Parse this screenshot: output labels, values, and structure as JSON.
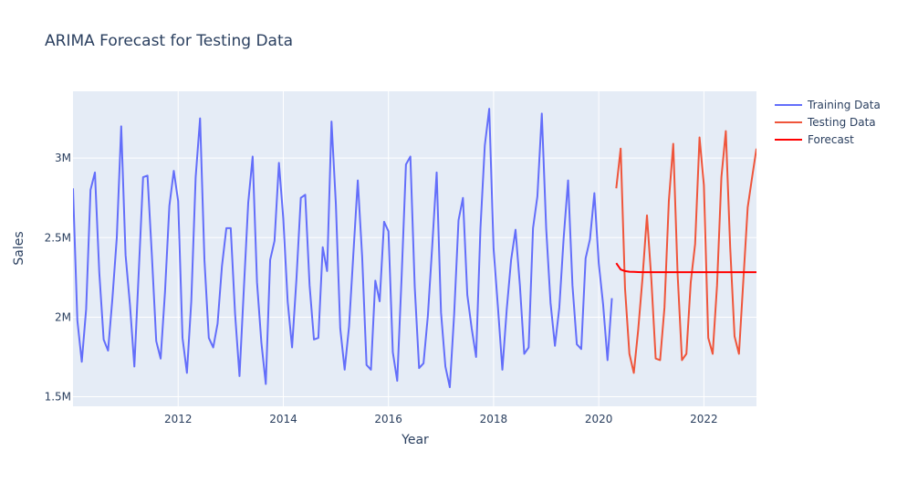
{
  "chart_data": {
    "type": "line",
    "title": "ARIMA Forecast for Testing Data",
    "xlabel": "Year",
    "ylabel": "Sales",
    "xlim": [
      2010.0,
      2023.0
    ],
    "ylim": [
      1440000,
      3420000
    ],
    "x_ticks": [
      2012,
      2014,
      2016,
      2018,
      2020,
      2022
    ],
    "y_ticks": [
      {
        "value": 1500000,
        "label": "1.5M"
      },
      {
        "value": 2000000,
        "label": "2M"
      },
      {
        "value": 2500000,
        "label": "2.5M"
      },
      {
        "value": 3000000,
        "label": "3M"
      }
    ],
    "grid": true,
    "legend_position": "right",
    "series": [
      {
        "name": "Training Data",
        "color": "#636efa",
        "values": [
          [
            2010.0,
            2810000
          ],
          [
            2010.083,
            1980000
          ],
          [
            2010.167,
            1720000
          ],
          [
            2010.25,
            2050000
          ],
          [
            2010.333,
            2800000
          ],
          [
            2010.417,
            2910000
          ],
          [
            2010.5,
            2280000
          ],
          [
            2010.583,
            1860000
          ],
          [
            2010.667,
            1790000
          ],
          [
            2010.75,
            2120000
          ],
          [
            2010.833,
            2500000
          ],
          [
            2010.917,
            3200000
          ],
          [
            2011.0,
            2390000
          ],
          [
            2011.083,
            2080000
          ],
          [
            2011.167,
            1690000
          ],
          [
            2011.25,
            2280000
          ],
          [
            2011.333,
            2880000
          ],
          [
            2011.417,
            2890000
          ],
          [
            2011.5,
            2390000
          ],
          [
            2011.583,
            1850000
          ],
          [
            2011.667,
            1740000
          ],
          [
            2011.75,
            2160000
          ],
          [
            2011.833,
            2700000
          ],
          [
            2011.917,
            2920000
          ],
          [
            2012.0,
            2730000
          ],
          [
            2012.083,
            1870000
          ],
          [
            2012.167,
            1650000
          ],
          [
            2012.25,
            2100000
          ],
          [
            2012.333,
            2880000
          ],
          [
            2012.417,
            3250000
          ],
          [
            2012.5,
            2360000
          ],
          [
            2012.583,
            1870000
          ],
          [
            2012.667,
            1810000
          ],
          [
            2012.75,
            1960000
          ],
          [
            2012.833,
            2320000
          ],
          [
            2012.917,
            2560000
          ],
          [
            2013.0,
            2560000
          ],
          [
            2013.083,
            2020000
          ],
          [
            2013.167,
            1630000
          ],
          [
            2013.25,
            2180000
          ],
          [
            2013.333,
            2720000
          ],
          [
            2013.417,
            3010000
          ],
          [
            2013.5,
            2220000
          ],
          [
            2013.583,
            1840000
          ],
          [
            2013.667,
            1580000
          ],
          [
            2013.75,
            2360000
          ],
          [
            2013.833,
            2480000
          ],
          [
            2013.917,
            2970000
          ],
          [
            2014.0,
            2620000
          ],
          [
            2014.083,
            2100000
          ],
          [
            2014.167,
            1810000
          ],
          [
            2014.25,
            2240000
          ],
          [
            2014.333,
            2750000
          ],
          [
            2014.417,
            2770000
          ],
          [
            2014.5,
            2200000
          ],
          [
            2014.583,
            1860000
          ],
          [
            2014.667,
            1870000
          ],
          [
            2014.75,
            2440000
          ],
          [
            2014.833,
            2290000
          ],
          [
            2014.917,
            3230000
          ],
          [
            2015.0,
            2710000
          ],
          [
            2015.083,
            1930000
          ],
          [
            2015.167,
            1670000
          ],
          [
            2015.25,
            1940000
          ],
          [
            2015.333,
            2400000
          ],
          [
            2015.417,
            2860000
          ],
          [
            2015.5,
            2380000
          ],
          [
            2015.583,
            1700000
          ],
          [
            2015.667,
            1670000
          ],
          [
            2015.75,
            2230000
          ],
          [
            2015.833,
            2100000
          ],
          [
            2015.917,
            2600000
          ],
          [
            2016.0,
            2540000
          ],
          [
            2016.083,
            1780000
          ],
          [
            2016.167,
            1600000
          ],
          [
            2016.25,
            2250000
          ],
          [
            2016.333,
            2960000
          ],
          [
            2016.417,
            3010000
          ],
          [
            2016.5,
            2190000
          ],
          [
            2016.583,
            1680000
          ],
          [
            2016.667,
            1710000
          ],
          [
            2016.75,
            2010000
          ],
          [
            2016.833,
            2450000
          ],
          [
            2016.917,
            2910000
          ],
          [
            2017.0,
            2030000
          ],
          [
            2017.083,
            1690000
          ],
          [
            2017.167,
            1560000
          ],
          [
            2017.25,
            2020000
          ],
          [
            2017.333,
            2610000
          ],
          [
            2017.417,
            2750000
          ],
          [
            2017.5,
            2140000
          ],
          [
            2017.583,
            1930000
          ],
          [
            2017.667,
            1750000
          ],
          [
            2017.75,
            2560000
          ],
          [
            2017.833,
            3080000
          ],
          [
            2017.917,
            3310000
          ],
          [
            2018.0,
            2430000
          ],
          [
            2018.083,
            2060000
          ],
          [
            2018.167,
            1670000
          ],
          [
            2018.25,
            2050000
          ],
          [
            2018.333,
            2360000
          ],
          [
            2018.417,
            2550000
          ],
          [
            2018.5,
            2200000
          ],
          [
            2018.583,
            1770000
          ],
          [
            2018.667,
            1810000
          ],
          [
            2018.75,
            2560000
          ],
          [
            2018.833,
            2760000
          ],
          [
            2018.917,
            3280000
          ],
          [
            2019.0,
            2560000
          ],
          [
            2019.083,
            2090000
          ],
          [
            2019.167,
            1820000
          ],
          [
            2019.25,
            2060000
          ],
          [
            2019.333,
            2500000
          ],
          [
            2019.417,
            2860000
          ],
          [
            2019.5,
            2200000
          ],
          [
            2019.583,
            1830000
          ],
          [
            2019.667,
            1800000
          ],
          [
            2019.75,
            2370000
          ],
          [
            2019.833,
            2490000
          ],
          [
            2019.917,
            2780000
          ],
          [
            2020.0,
            2340000
          ],
          [
            2020.083,
            2080000
          ],
          [
            2020.167,
            1730000
          ],
          [
            2020.25,
            2120000
          ]
        ]
      },
      {
        "name": "Testing Data",
        "color": "#ef553b",
        "values": [
          [
            2020.333,
            2810000
          ],
          [
            2020.417,
            3060000
          ],
          [
            2020.5,
            2180000
          ],
          [
            2020.583,
            1770000
          ],
          [
            2020.667,
            1650000
          ],
          [
            2020.75,
            1920000
          ],
          [
            2020.833,
            2250000
          ],
          [
            2020.917,
            2640000
          ],
          [
            2021.0,
            2240000
          ],
          [
            2021.083,
            1740000
          ],
          [
            2021.167,
            1730000
          ],
          [
            2021.25,
            2060000
          ],
          [
            2021.333,
            2730000
          ],
          [
            2021.417,
            3090000
          ],
          [
            2021.5,
            2270000
          ],
          [
            2021.583,
            1730000
          ],
          [
            2021.667,
            1770000
          ],
          [
            2021.75,
            2220000
          ],
          [
            2021.833,
            2460000
          ],
          [
            2021.917,
            3130000
          ],
          [
            2022.0,
            2830000
          ],
          [
            2022.083,
            1870000
          ],
          [
            2022.167,
            1770000
          ],
          [
            2022.25,
            2200000
          ],
          [
            2022.333,
            2880000
          ],
          [
            2022.417,
            3170000
          ],
          [
            2022.5,
            2440000
          ],
          [
            2022.583,
            1880000
          ],
          [
            2022.667,
            1770000
          ],
          [
            2022.75,
            2230000
          ],
          [
            2022.833,
            2690000
          ],
          [
            2022.917,
            2880000
          ],
          [
            2023.0,
            3060000
          ]
        ]
      },
      {
        "name": "Forecast",
        "color": "#ff0000",
        "values": [
          [
            2020.333,
            2340000
          ],
          [
            2020.417,
            2300000
          ],
          [
            2020.5,
            2290000
          ],
          [
            2020.583,
            2286000
          ],
          [
            2020.667,
            2285000
          ],
          [
            2020.75,
            2284000
          ],
          [
            2020.833,
            2283000
          ],
          [
            2020.917,
            2283000
          ],
          [
            2021.0,
            2283000
          ],
          [
            2021.5,
            2283000
          ],
          [
            2022.0,
            2283000
          ],
          [
            2022.5,
            2283000
          ],
          [
            2023.0,
            2283000
          ]
        ]
      }
    ]
  }
}
